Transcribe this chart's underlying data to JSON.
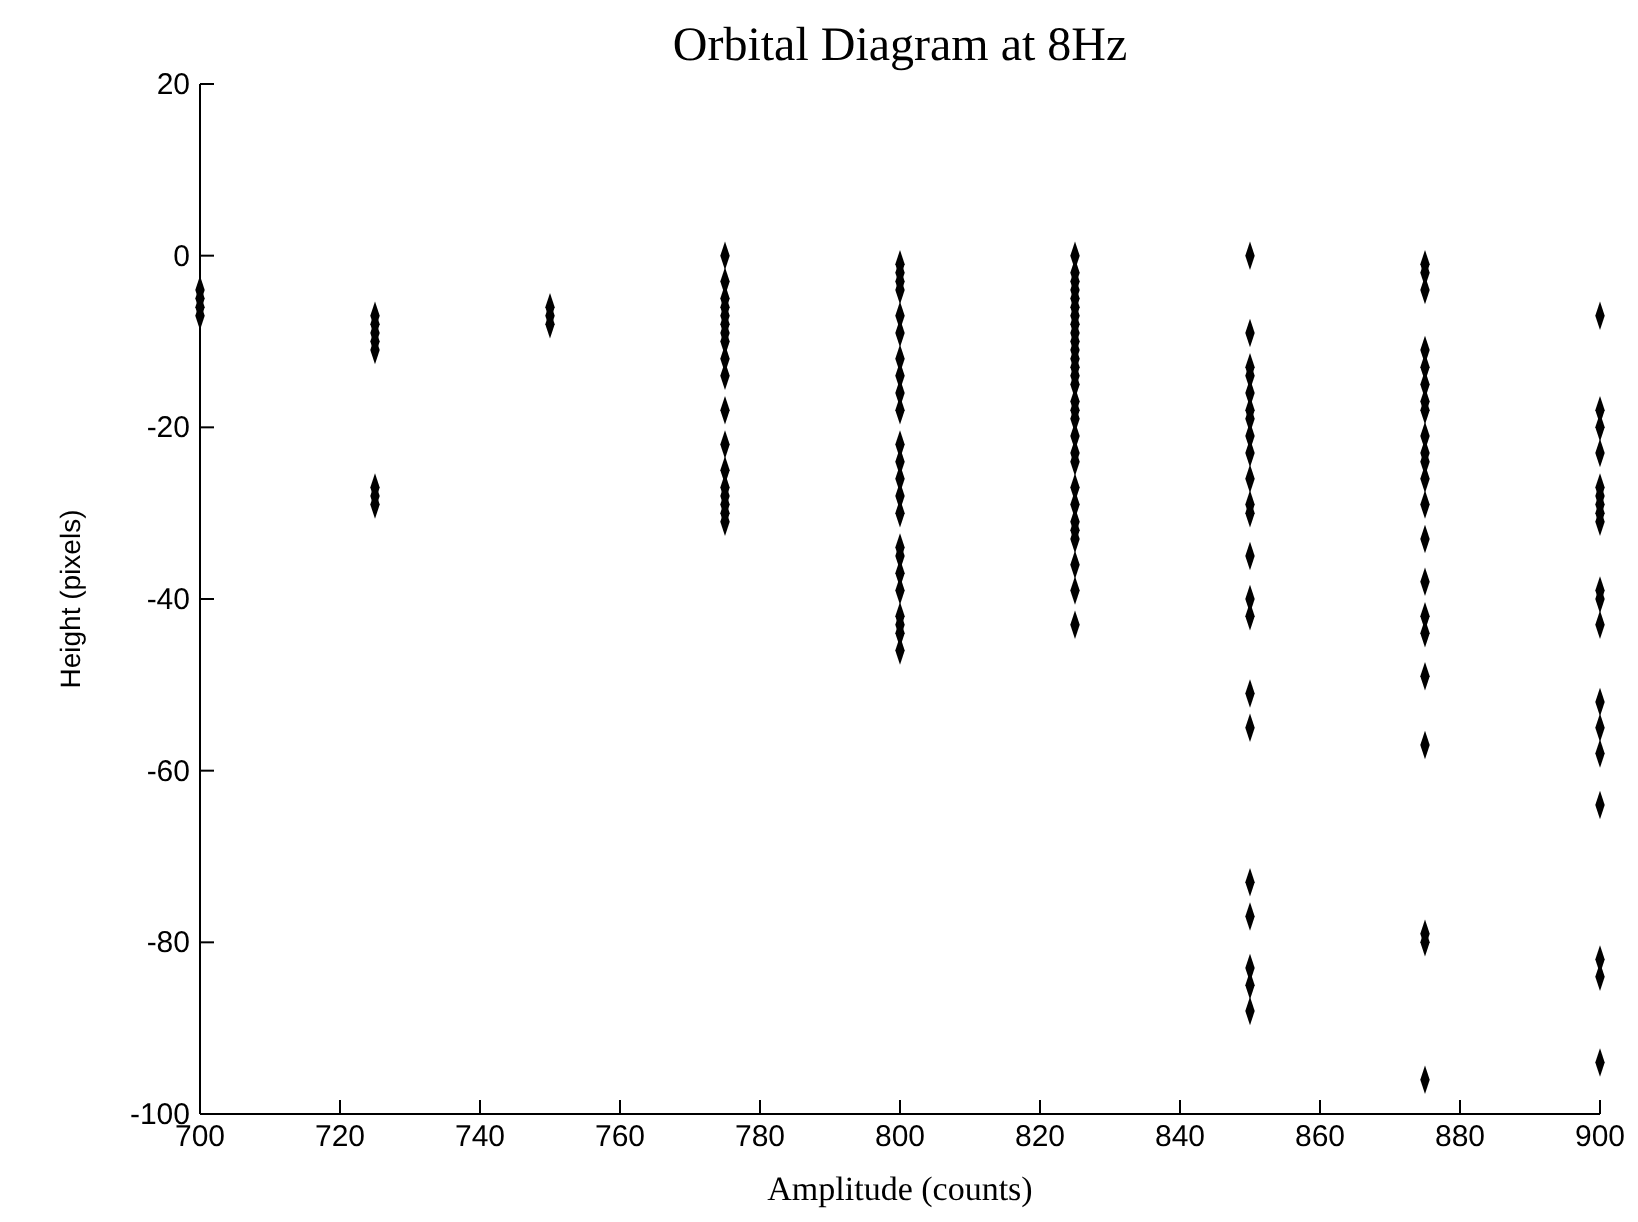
{
  "chart_data": {
    "type": "scatter",
    "title": "Orbital Diagram at 8Hz",
    "xlabel": "Amplitude (counts)",
    "ylabel": "Height (pixels)",
    "xlim": [
      700,
      900
    ],
    "xticks": [
      700,
      720,
      740,
      760,
      780,
      800,
      820,
      840,
      860,
      880,
      900
    ],
    "ylim": [
      -100,
      20
    ],
    "yticks": [
      -100,
      -80,
      -60,
      -40,
      -20,
      0,
      20
    ],
    "grid": false,
    "marker": "diamond",
    "series": [
      {
        "color": "#000000",
        "x": [
          700,
          700,
          700,
          700,
          725,
          725,
          725,
          725,
          725,
          725,
          725,
          725,
          750,
          750,
          750,
          775,
          775,
          775,
          775,
          775,
          775,
          775,
          775,
          775,
          775,
          775,
          775,
          775,
          775,
          775,
          775,
          775,
          775,
          800,
          800,
          800,
          800,
          800,
          800,
          800,
          800,
          800,
          800,
          800,
          800,
          800,
          800,
          800,
          800,
          800,
          800,
          800,
          800,
          800,
          800,
          800,
          825,
          825,
          825,
          825,
          825,
          825,
          825,
          825,
          825,
          825,
          825,
          825,
          825,
          825,
          825,
          825,
          825,
          825,
          825,
          825,
          825,
          825,
          825,
          825,
          825,
          825,
          825,
          825,
          825,
          850,
          850,
          850,
          850,
          850,
          850,
          850,
          850,
          850,
          850,
          850,
          850,
          850,
          850,
          850,
          850,
          850,
          850,
          850,
          850,
          850,
          850,
          875,
          875,
          875,
          875,
          875,
          875,
          875,
          875,
          875,
          875,
          875,
          875,
          875,
          875,
          875,
          875,
          875,
          875,
          875,
          875,
          875,
          875,
          900,
          900,
          900,
          900,
          900,
          900,
          900,
          900,
          900,
          900,
          900,
          900,
          900,
          900,
          900,
          900,
          900,
          900,
          900
        ],
        "values": [
          -4,
          -5,
          -6,
          -7,
          -7,
          -8,
          -9,
          -10,
          -11,
          -27,
          -28,
          -29,
          -6,
          -7,
          -8,
          0,
          -3,
          -5,
          -6,
          -7,
          -8,
          -9,
          -10,
          -12,
          -14,
          -18,
          -22,
          -25,
          -27,
          -28,
          -29,
          -30,
          -31,
          -1,
          -2,
          -3,
          -4,
          -7,
          -9,
          -12,
          -14,
          -16,
          -18,
          -22,
          -24,
          -26,
          -28,
          -30,
          -34,
          -35,
          -37,
          -39,
          -42,
          -43,
          -44,
          -46,
          0,
          -2,
          -3,
          -4,
          -5,
          -6,
          -7,
          -8,
          -9,
          -10,
          -11,
          -12,
          -13,
          -14,
          -15,
          -17,
          -18,
          -19,
          -21,
          -23,
          -24,
          -27,
          -29,
          -31,
          -32,
          -33,
          -36,
          -39,
          -43,
          0,
          -9,
          -13,
          -14,
          -16,
          -18,
          -19,
          -21,
          -23,
          -26,
          -29,
          -30,
          -35,
          -40,
          -42,
          -51,
          -55,
          -73,
          -77,
          -83,
          -85,
          -88,
          -1,
          -2,
          -4,
          -11,
          -13,
          -15,
          -17,
          -18,
          -21,
          -23,
          -24,
          -26,
          -29,
          -33,
          -38,
          -42,
          -44,
          -49,
          -57,
          -79,
          -80,
          -96,
          -7,
          -18,
          -20,
          -23,
          -27,
          -28,
          -29,
          -30,
          -31,
          -39,
          -40,
          -43,
          -52,
          -55,
          -58,
          -64,
          -82,
          -84,
          -94
        ]
      }
    ]
  }
}
